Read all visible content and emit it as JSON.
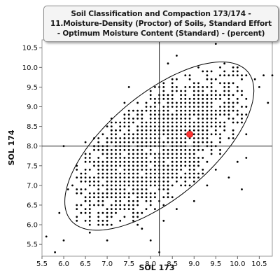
{
  "chart_data": {
    "type": "scatter",
    "title": "Soil Classification and Compaction 173/174 - 11.Moisture-Density (Proctor) of Soils, Standard Effort - Optimum Moisture Content (Standard) - (percent)",
    "xlabel": "SOL 173",
    "ylabel": "SOL 174",
    "xlim": [
      5.5,
      10.8
    ],
    "ylim": [
      5.2,
      10.7
    ],
    "x_ticks": [
      "5.5",
      "6.0",
      "6.5",
      "7.0",
      "7.5",
      "8.0",
      "8.5",
      "9.0",
      "9.5",
      "10.0",
      "10.5"
    ],
    "y_ticks": [
      "5.5",
      "6.0",
      "6.5",
      "7.0",
      "7.5",
      "8.0",
      "8.5",
      "9.0",
      "9.5",
      "10.0",
      "10.5"
    ],
    "grid": false,
    "reference_lines": {
      "x": 8.2,
      "y": 8.0
    },
    "highlight_point": {
      "x": 8.9,
      "y": 8.3,
      "color": "#ff3333"
    },
    "ellipse": {
      "color": "#000000"
    },
    "point_color": "#000000",
    "cloud_points": [
      [
        5.6,
        5.7
      ],
      [
        5.8,
        5.3
      ],
      [
        5.9,
        6.3
      ],
      [
        6.0,
        5.6
      ],
      [
        6.0,
        8.0
      ],
      [
        6.1,
        6.9
      ],
      [
        6.2,
        7.0
      ],
      [
        6.3,
        6.4
      ],
      [
        6.3,
        7.5
      ],
      [
        6.4,
        6.8
      ],
      [
        6.5,
        6.6
      ],
      [
        6.5,
        7.4
      ],
      [
        6.5,
        8.1
      ],
      [
        6.6,
        5.8
      ],
      [
        6.6,
        6.2
      ],
      [
        6.6,
        7.1
      ],
      [
        6.7,
        8.0
      ],
      [
        6.7,
        8.2
      ],
      [
        6.8,
        6.0
      ],
      [
        6.9,
        6.5
      ],
      [
        7.0,
        5.6
      ],
      [
        7.0,
        6.8
      ],
      [
        7.1,
        8.4
      ],
      [
        7.1,
        8.7
      ],
      [
        7.2,
        6.3
      ],
      [
        7.4,
        8.2
      ],
      [
        7.6,
        6.1
      ],
      [
        7.7,
        6.0
      ],
      [
        7.8,
        5.9
      ],
      [
        8.0,
        5.6
      ],
      [
        8.2,
        5.3
      ],
      [
        8.3,
        6.1
      ],
      [
        8.6,
        6.4
      ],
      [
        9.0,
        6.6
      ],
      [
        9.3,
        7.0
      ],
      [
        9.5,
        7.4
      ],
      [
        9.8,
        7.2
      ],
      [
        10.0,
        7.6
      ],
      [
        10.1,
        6.9
      ],
      [
        10.2,
        7.7
      ],
      [
        8.4,
        10.1
      ],
      [
        8.6,
        10.3
      ],
      [
        9.5,
        10.6
      ],
      [
        9.7,
        10.1
      ],
      [
        10.0,
        10.0
      ],
      [
        10.0,
        9.8
      ],
      [
        10.4,
        9.7
      ],
      [
        10.6,
        9.8
      ],
      [
        10.8,
        9.8
      ],
      [
        10.5,
        9.5
      ],
      [
        10.7,
        9.1
      ],
      [
        10.2,
        8.3
      ],
      [
        10.2,
        9.0
      ],
      [
        10.0,
        8.6
      ],
      [
        9.8,
        9.6
      ],
      [
        9.8,
        8.9
      ],
      [
        9.2,
        9.9
      ],
      [
        7.5,
        9.5
      ],
      [
        7.4,
        9.1
      ]
    ]
  }
}
